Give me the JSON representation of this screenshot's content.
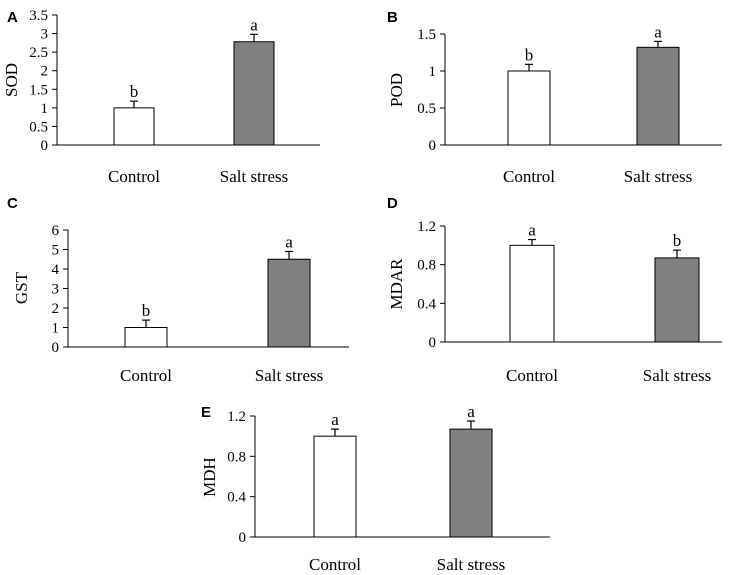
{
  "chart_data": [
    {
      "type": "bar",
      "panel": "A",
      "ylabel": "SOD",
      "categories": [
        "Control",
        "Salt stress"
      ],
      "values": [
        1.0,
        2.78
      ],
      "errors": [
        0.18,
        0.2
      ],
      "significance": [
        "b",
        "a"
      ],
      "bar_colors": [
        "#ffffff",
        "#808080"
      ],
      "ylim": [
        0,
        3.5
      ],
      "yticks": [
        "0",
        "0.5",
        "1",
        "1.5",
        "2",
        "2.5",
        "3",
        "3.5"
      ]
    },
    {
      "type": "bar",
      "panel": "B",
      "ylabel": "POD",
      "categories": [
        "Control",
        "Salt stress"
      ],
      "values": [
        1.0,
        1.32
      ],
      "errors": [
        0.09,
        0.08
      ],
      "significance": [
        "b",
        "a"
      ],
      "bar_colors": [
        "#ffffff",
        "#808080"
      ],
      "ylim": [
        0,
        1.5
      ],
      "yticks": [
        "0",
        "0.5",
        "1",
        "1.5"
      ]
    },
    {
      "type": "bar",
      "panel": "C",
      "ylabel": "GST",
      "categories": [
        "Control",
        "Salt stress"
      ],
      "values": [
        1.0,
        4.5
      ],
      "errors": [
        0.38,
        0.4
      ],
      "significance": [
        "b",
        "a"
      ],
      "bar_colors": [
        "#ffffff",
        "#808080"
      ],
      "ylim": [
        0,
        6
      ],
      "yticks": [
        "0",
        "1",
        "2",
        "3",
        "4",
        "5",
        "6"
      ]
    },
    {
      "type": "bar",
      "panel": "D",
      "ylabel": "MDAR",
      "categories": [
        "Control",
        "Salt stress"
      ],
      "values": [
        1.0,
        0.87
      ],
      "errors": [
        0.06,
        0.08
      ],
      "significance": [
        "a",
        "b"
      ],
      "bar_colors": [
        "#ffffff",
        "#808080"
      ],
      "ylim": [
        0,
        1.2
      ],
      "yticks": [
        "0",
        "0.4",
        "0.8",
        "1.2"
      ]
    },
    {
      "type": "bar",
      "panel": "E",
      "ylabel": "MDH",
      "categories": [
        "Control",
        "Salt stress"
      ],
      "values": [
        1.0,
        1.07
      ],
      "errors": [
        0.07,
        0.08
      ],
      "significance": [
        "a",
        "a"
      ],
      "bar_colors": [
        "#ffffff",
        "#808080"
      ],
      "ylim": [
        0,
        1.2
      ],
      "yticks": [
        "0",
        "0.4",
        "0.8",
        "1.2"
      ]
    }
  ]
}
